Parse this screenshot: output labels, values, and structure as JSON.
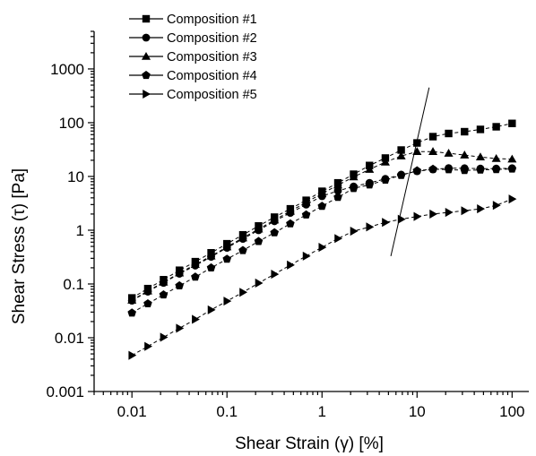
{
  "chart_data": {
    "type": "line",
    "x_scale": "log",
    "y_scale": "log",
    "xlim": [
      0.004,
      150
    ],
    "ylim": [
      0.001,
      5000
    ],
    "xlabel": "Shear Strain (γ) [%]",
    "ylabel": "Shear Stress (τ) [Pa]",
    "x_ticks": [
      0.01,
      0.1,
      1,
      10,
      100
    ],
    "x_tick_labels": [
      "0.01",
      "0.1",
      "1",
      "10",
      "100"
    ],
    "y_ticks": [
      0.001,
      0.01,
      0.1,
      1,
      10,
      100,
      1000
    ],
    "y_tick_labels": [
      "0.001",
      "0.01",
      "0.1",
      "1",
      "10",
      "100",
      "1000"
    ],
    "grid": false,
    "legend_position": "top-left",
    "x": [
      0.01,
      0.0147,
      0.0215,
      0.0316,
      0.0464,
      0.0681,
      0.1,
      0.147,
      0.215,
      0.316,
      0.464,
      0.681,
      1.0,
      1.47,
      2.15,
      3.16,
      4.64,
      6.81,
      10,
      14.7,
      21.5,
      31.6,
      46.4,
      68.1,
      100
    ],
    "series": [
      {
        "name": "Composition #1",
        "marker": "square",
        "values": [
          0.055,
          0.082,
          0.12,
          0.18,
          0.26,
          0.38,
          0.56,
          0.82,
          1.2,
          1.75,
          2.5,
          3.6,
          5.3,
          7.6,
          11,
          16,
          22,
          31,
          42,
          55,
          63,
          68,
          75,
          84,
          97
        ]
      },
      {
        "name": "Composition #2",
        "marker": "circle",
        "values": [
          0.049,
          0.072,
          0.105,
          0.155,
          0.22,
          0.32,
          0.47,
          0.69,
          1.0,
          1.47,
          2.1,
          3.0,
          4.3,
          5.4,
          6.5,
          7.6,
          9.0,
          10.8,
          12.5,
          13.5,
          14.3,
          14.2,
          14.0,
          14.0,
          14.2
        ]
      },
      {
        "name": "Composition #3",
        "marker": "triangle-up",
        "values": [
          0.05,
          0.074,
          0.108,
          0.16,
          0.23,
          0.33,
          0.49,
          0.72,
          1.05,
          1.55,
          2.25,
          3.3,
          4.8,
          6.9,
          9.8,
          13.5,
          18.5,
          24,
          29,
          29,
          27,
          25,
          23,
          21.5,
          21
        ]
      },
      {
        "name": "Composition #4",
        "marker": "pentagon",
        "values": [
          0.029,
          0.043,
          0.063,
          0.093,
          0.135,
          0.2,
          0.29,
          0.42,
          0.62,
          0.9,
          1.32,
          1.93,
          2.8,
          4.1,
          6.0,
          7.0,
          8.6,
          10.5,
          12.8,
          13.7,
          13.4,
          13.0,
          13.2,
          13.5,
          13.8
        ]
      },
      {
        "name": "Composition #5",
        "marker": "triangle-right",
        "values": [
          0.0047,
          0.0069,
          0.0102,
          0.015,
          0.022,
          0.033,
          0.048,
          0.07,
          0.104,
          0.152,
          0.225,
          0.33,
          0.48,
          0.7,
          0.96,
          1.15,
          1.4,
          1.6,
          1.8,
          2.0,
          2.15,
          2.3,
          2.5,
          2.9,
          3.8
        ]
      }
    ],
    "annotations": [
      {
        "type": "line",
        "from": [
          5.3,
          0.33
        ],
        "to": [
          13.4,
          450
        ]
      }
    ]
  }
}
